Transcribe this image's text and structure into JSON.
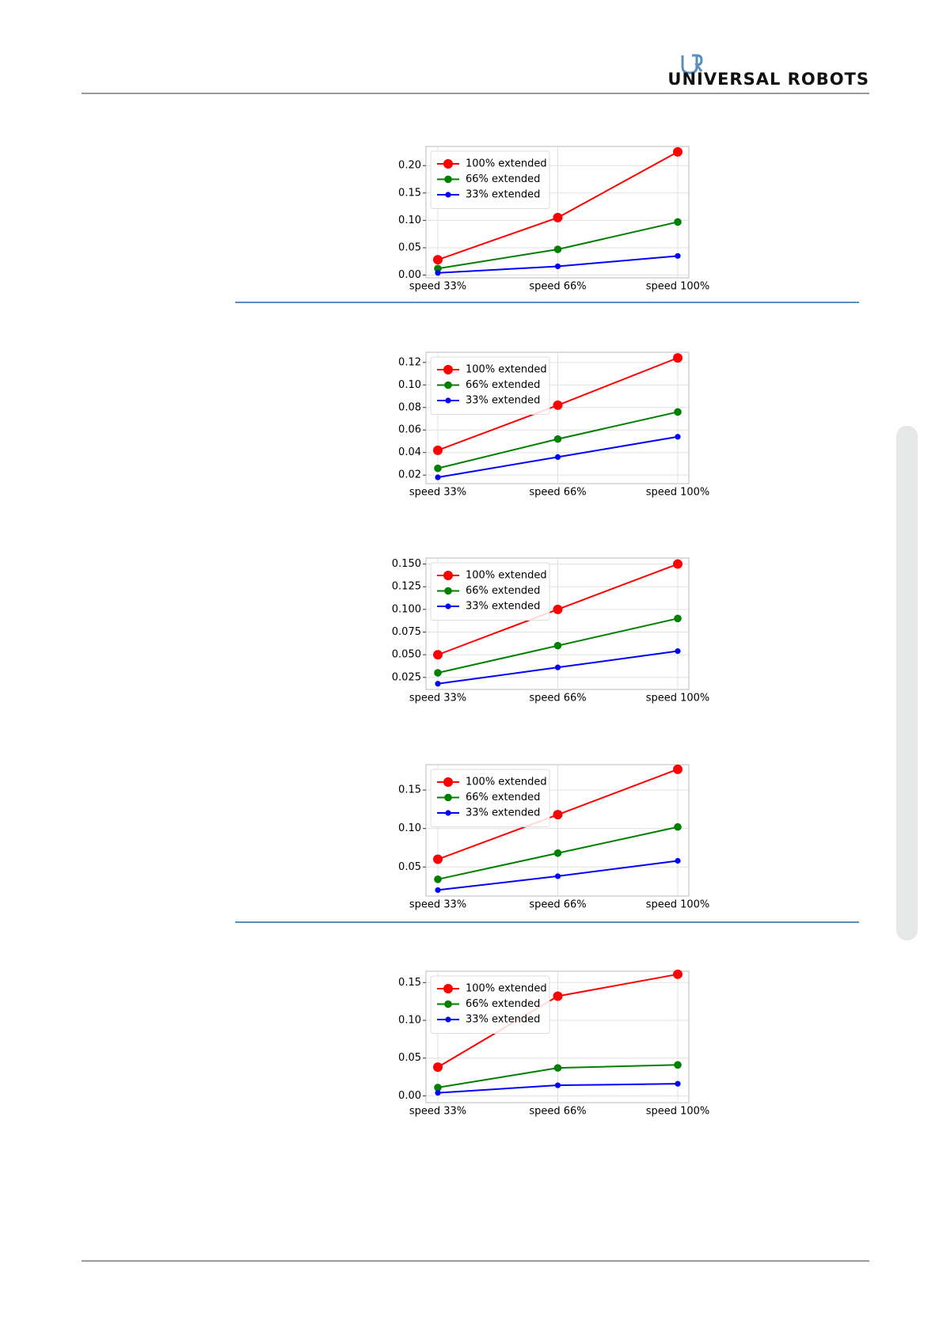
{
  "header": {
    "logo": "UNIVERSAL ROBOTS"
  },
  "chart_data": [
    {
      "type": "line",
      "categories": [
        "speed 33%",
        "speed 66%",
        "speed 100%"
      ],
      "grid": true,
      "legend": "upper left",
      "ylim": [
        -0.005,
        0.235
      ],
      "yticks": [
        {
          "value": 0,
          "label": "0.00"
        },
        0.05,
        {
          "value": 0.1,
          "label": "0.10"
        },
        0.15,
        {
          "value": 0.2,
          "label": "0.20"
        }
      ],
      "series": [
        {
          "name": "100% extended",
          "color": "#ff0000",
          "values": [
            0.028,
            0.105,
            0.225
          ]
        },
        {
          "name": "66% extended",
          "color": "#008000",
          "values": [
            0.012,
            0.047,
            0.097
          ]
        },
        {
          "name": "33% extended",
          "color": "#0000ff",
          "values": [
            0.004,
            0.016,
            0.035
          ]
        }
      ]
    },
    {
      "type": "line",
      "categories": [
        "speed 33%",
        "speed 66%",
        "speed 100%"
      ],
      "grid": true,
      "legend": "upper left",
      "ylim": [
        0.0124,
        0.129
      ],
      "yticks": [
        0.02,
        0.04,
        0.06,
        0.08,
        {
          "value": 0.1,
          "label": "0.10"
        },
        0.12
      ],
      "series": [
        {
          "name": "100% extended",
          "color": "#ff0000",
          "values": [
            0.042,
            0.082,
            0.124
          ]
        },
        {
          "name": "66% extended",
          "color": "#008000",
          "values": [
            0.026,
            0.052,
            0.076
          ]
        },
        {
          "name": "33% extended",
          "color": "#0000ff",
          "values": [
            0.018,
            0.036,
            0.054
          ]
        }
      ]
    },
    {
      "type": "line",
      "categories": [
        "speed 33%",
        "speed 66%",
        "speed 100%"
      ],
      "grid": true,
      "legend": "upper left",
      "ylim": [
        0.0117,
        0.1566
      ],
      "yticks": [
        0.025,
        {
          "value": 0.05,
          "label": "0.050"
        },
        0.075,
        {
          "value": 0.1,
          "label": "0.100"
        },
        0.125,
        {
          "value": 0.15,
          "label": "0.150"
        }
      ],
      "series": [
        {
          "name": "100% extended",
          "color": "#ff0000",
          "values": [
            0.05,
            0.1,
            0.15
          ]
        },
        {
          "name": "66% extended",
          "color": "#008000",
          "values": [
            0.03,
            0.06,
            0.09
          ]
        },
        {
          "name": "33% extended",
          "color": "#0000ff",
          "values": [
            0.018,
            0.036,
            0.054
          ]
        }
      ]
    },
    {
      "type": "line",
      "categories": [
        "speed 33%",
        "speed 66%",
        "speed 100%"
      ],
      "grid": true,
      "legend": "upper left",
      "ylim": [
        0.0122,
        0.183
      ],
      "yticks": [
        0.05,
        {
          "value": 0.1,
          "label": "0.10"
        },
        0.15
      ],
      "series": [
        {
          "name": "100% extended",
          "color": "#ff0000",
          "values": [
            0.06,
            0.118,
            0.177
          ]
        },
        {
          "name": "66% extended",
          "color": "#008000",
          "values": [
            0.034,
            0.068,
            0.102
          ]
        },
        {
          "name": "33% extended",
          "color": "#0000ff",
          "values": [
            0.02,
            0.038,
            0.058
          ]
        }
      ]
    },
    {
      "type": "line",
      "categories": [
        "speed 33%",
        "speed 66%",
        "speed 100%"
      ],
      "grid": true,
      "legend": "upper left",
      "ylim": [
        -0.009,
        0.165
      ],
      "yticks": [
        {
          "value": 0,
          "label": "0.00"
        },
        0.05,
        {
          "value": 0.1,
          "label": "0.10"
        },
        0.15
      ],
      "series": [
        {
          "name": "100% extended",
          "color": "#ff0000",
          "values": [
            0.038,
            0.132,
            0.161
          ]
        },
        {
          "name": "66% extended",
          "color": "#008000",
          "values": [
            0.011,
            0.037,
            0.041
          ]
        },
        {
          "name": "33% extended",
          "color": "#0000ff",
          "values": [
            0.004,
            0.014,
            0.016
          ]
        }
      ]
    }
  ]
}
